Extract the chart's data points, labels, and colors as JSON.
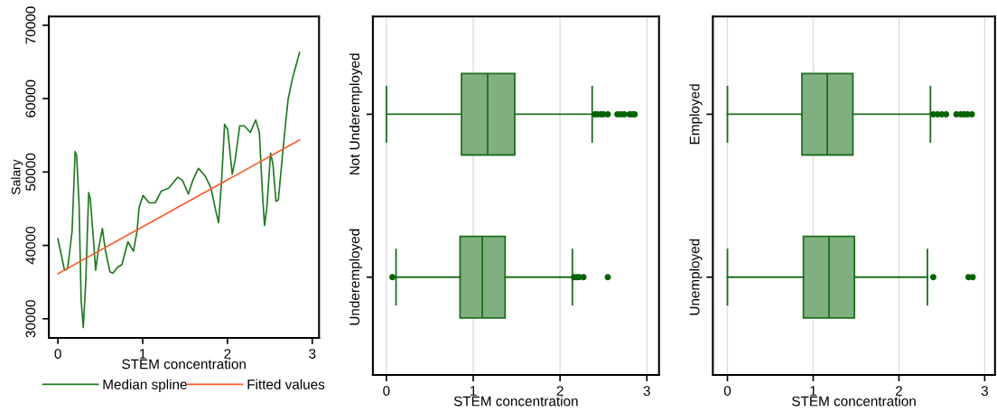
{
  "chart_data": [
    {
      "type": "line",
      "xlabel": "STEM concentration",
      "ylabel": "Salary",
      "xlim": [
        -0.107,
        3.08
      ],
      "ylim": [
        27400,
        71200
      ],
      "xticks": [
        0,
        1,
        2,
        3
      ],
      "yticks": [
        30000,
        40000,
        50000,
        60000,
        70000
      ],
      "grid": false,
      "legend": "bottom",
      "series": [
        {
          "name": "Median spline",
          "color": "#1e7a1e",
          "x": [
            0,
            0.078,
            0.114,
            0.167,
            0.203,
            0.221,
            0.249,
            0.274,
            0.299,
            0.328,
            0.363,
            0.381,
            0.417,
            0.445,
            0.477,
            0.524,
            0.559,
            0.613,
            0.648,
            0.702,
            0.755,
            0.826,
            0.891,
            0.933,
            0.958,
            1.004,
            1.076,
            1.147,
            1.218,
            1.307,
            1.414,
            1.468,
            1.539,
            1.592,
            1.657,
            1.735,
            1.806,
            1.86,
            1.895,
            1.931,
            1.966,
            2.002,
            2.056,
            2.091,
            2.145,
            2.198,
            2.269,
            2.333,
            2.376,
            2.412,
            2.437,
            2.465,
            2.508,
            2.536,
            2.572,
            2.6,
            2.661,
            2.715,
            2.768,
            2.85
          ],
          "values": [
            40900,
            36600,
            36800,
            41900,
            52800,
            52200,
            45600,
            32500,
            28800,
            34900,
            47200,
            46400,
            41100,
            36600,
            39400,
            42300,
            39400,
            36400,
            36200,
            37000,
            37400,
            40500,
            39200,
            41900,
            45200,
            46800,
            45800,
            45800,
            47400,
            47800,
            49300,
            48900,
            47000,
            48900,
            50500,
            49500,
            47800,
            44800,
            43100,
            48900,
            56500,
            55800,
            49700,
            51700,
            56300,
            56300,
            55400,
            57100,
            55400,
            47200,
            42700,
            45200,
            52600,
            51100,
            46000,
            46200,
            53800,
            59900,
            62800,
            66300
          ]
        },
        {
          "name": "Fitted values",
          "color": "#ff5a2a",
          "x": [
            0,
            2.85
          ],
          "values": [
            36150,
            54370
          ]
        }
      ]
    },
    {
      "type": "box",
      "orientation": "horizontal",
      "xlabel": "STEM concentration",
      "xlim": [
        -0.156,
        3.14
      ],
      "xticks": [
        0,
        1,
        2,
        3
      ],
      "grid": "x",
      "color": "#80b080",
      "categories": [
        "Not Underemployed",
        "Underemployed"
      ],
      "boxes": [
        {
          "low": 0,
          "q1": 0.865,
          "median": 1.166,
          "q3": 1.478,
          "high": 2.37,
          "outliers": [
            2.4,
            2.43,
            2.47,
            2.5,
            2.55,
            2.66,
            2.7,
            2.74,
            2.8,
            2.83,
            2.86
          ]
        },
        {
          "low": 0.111,
          "q1": 0.848,
          "median": 1.104,
          "q3": 1.367,
          "high": 2.142,
          "outliers": [
            0.069,
            2.16,
            2.19,
            2.22,
            2.27,
            2.55
          ]
        }
      ]
    },
    {
      "type": "box",
      "orientation": "horizontal",
      "xlabel": "STEM concentration",
      "xlim": [
        -0.17,
        3.12
      ],
      "xticks": [
        0,
        1,
        2,
        3
      ],
      "grid": "x",
      "color": "#80b080",
      "categories": [
        "Employed",
        "Unemployed"
      ],
      "boxes": [
        {
          "low": 0,
          "q1": 0.869,
          "median": 1.164,
          "q3": 1.463,
          "high": 2.367,
          "outliers": [
            2.4,
            2.45,
            2.5,
            2.55,
            2.67,
            2.72,
            2.76,
            2.8,
            2.85
          ]
        },
        {
          "low": 0,
          "q1": 0.886,
          "median": 1.185,
          "q3": 1.481,
          "high": 2.332,
          "outliers": [
            2.4,
            2.81,
            2.86
          ]
        }
      ]
    }
  ]
}
